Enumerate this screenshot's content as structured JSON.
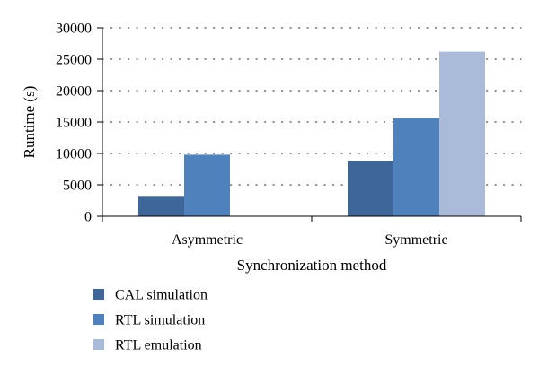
{
  "chart_data": {
    "type": "bar",
    "title": "",
    "xlabel": "Synchronization method",
    "ylabel": "Runtime (s)",
    "categories": [
      "Asymmetric",
      "Symmetric"
    ],
    "ylim": [
      0,
      30000
    ],
    "yticks": [
      0,
      5000,
      10000,
      15000,
      20000,
      25000,
      30000
    ],
    "grid": "horizontal-dotted",
    "legend_position": "bottom-left",
    "series": [
      {
        "name": "CAL simulation",
        "color": "#3f6699",
        "values": [
          3100,
          8800
        ]
      },
      {
        "name": "RTL simulation",
        "color": "#4f81bd",
        "values": [
          9800,
          15600
        ]
      },
      {
        "name": "RTL emulation",
        "color": "#a9bbd9",
        "values": [
          null,
          26200
        ]
      }
    ]
  }
}
